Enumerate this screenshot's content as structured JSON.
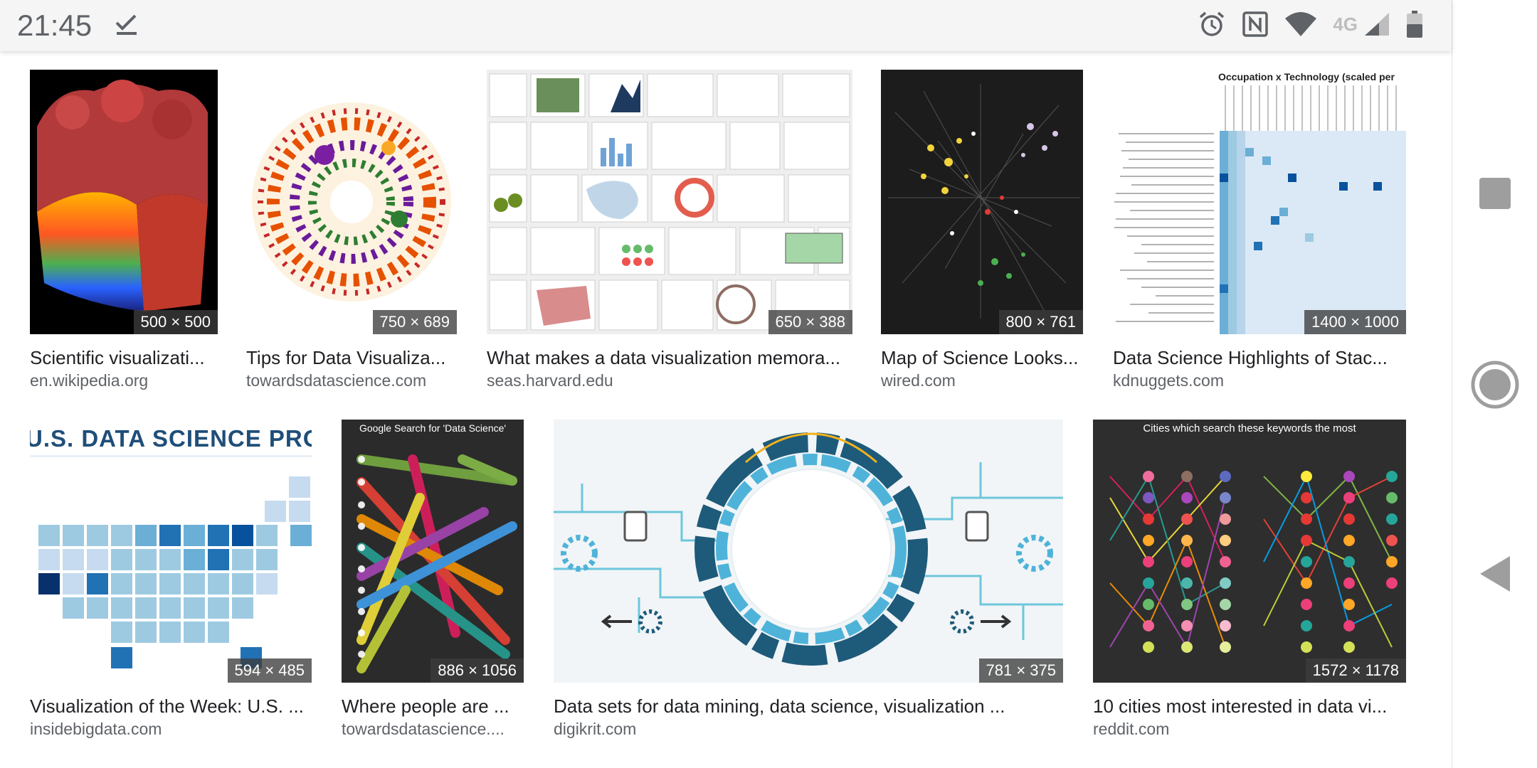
{
  "status_bar": {
    "time": "21:45",
    "network_type": "4G",
    "icons": [
      "check-icon",
      "alarm-icon",
      "nfc-icon",
      "wifi-icon",
      "signal-icon",
      "battery-icon"
    ]
  },
  "nav_bar": {
    "buttons": [
      "recents-button",
      "home-button",
      "back-button"
    ]
  },
  "results": [
    {
      "title": "Scientific visualizati...",
      "source": "en.wikipedia.org",
      "dims": "500 × 500"
    },
    {
      "title": "Tips for Data Visualiza...",
      "source": "towardsdatascience.com",
      "dims": "750 × 689"
    },
    {
      "title": "What makes a data visualization memora...",
      "source": "seas.harvard.edu",
      "dims": "650 × 388"
    },
    {
      "title": "Map of Science Looks...",
      "source": "wired.com",
      "dims": "800 × 761"
    },
    {
      "title": "Data Science Highlights of Stac...",
      "source": "kdnuggets.com",
      "dims": "1400 × 1000",
      "thumb_text": "Occupation x Technology (scaled per"
    },
    {
      "title": "Visualization of the Week: U.S. ...",
      "source": "insidebigdata.com",
      "dims": "594 × 485",
      "thumb_text": "U.S. DATA SCIENCE PROGRAM"
    },
    {
      "title": "Where people are ...",
      "source": "towardsdatascience....",
      "dims": "886 × 1056",
      "thumb_text": "Google Search for 'Data Science'"
    },
    {
      "title": "Data sets for data mining, data science, visualization ...",
      "source": "digikrit.com",
      "dims": "781 × 375"
    },
    {
      "title": "10 cities most interested in data vi...",
      "source": "reddit.com",
      "dims": "1572 × 1178",
      "thumb_text": "Cities which search these keywords the most"
    }
  ]
}
